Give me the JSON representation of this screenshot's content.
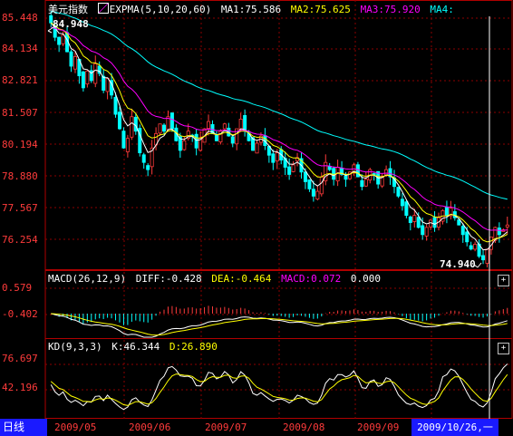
{
  "main_panel": {
    "title": "美元指数",
    "indicator_name": "EXPMA(5,10,20,60)",
    "ma1": "MA1:75.586",
    "ma2": "MA2:75.625",
    "ma3": "MA3:75.920",
    "ma4": "MA4:",
    "high_annotation": "84.948",
    "low_annotation": "74.940",
    "y_ticks": [
      "85.448",
      "84.134",
      "82.821",
      "81.507",
      "80.194",
      "78.880",
      "77.567",
      "76.254"
    ],
    "colors": {
      "ma1": "#ffffff",
      "ma2": "#ffff00",
      "ma3": "#ff00ff",
      "ma4": "#00ffff",
      "up": "#ff3b3b",
      "down": "#00ffff"
    }
  },
  "macd_panel": {
    "label": "MACD(26,12,9)",
    "diff": "DIFF:-0.428",
    "dea": "DEA:-0.464",
    "macd": "MACD:0.072",
    "extra": "0.000",
    "y_ticks": [
      "0.579",
      "-0.402"
    ],
    "plus_button": "+"
  },
  "kd_panel": {
    "label": "KD(9,3,3)",
    "k": "K:46.344",
    "d": "D:26.890",
    "y_ticks": [
      "76.697",
      "42.196"
    ],
    "plus_button": "+"
  },
  "bottom_bar": {
    "period": "日线",
    "dates": [
      "2009/05",
      "2009/06",
      "2009/07",
      "2009/08",
      "2009/09"
    ],
    "cursor_date": "2009/10/26,一"
  },
  "chart_data": {
    "type": "candlestick",
    "x_range": [
      "2009/05",
      "2009/10/26"
    ],
    "ylim": [
      74.6,
      85.6
    ],
    "close": [
      84.8,
      84.2,
      83.9,
      84.3,
      83.6,
      83.0,
      83.4,
      82.6,
      82.1,
      82.8,
      82.4,
      83.1,
      82.7,
      82.0,
      82.5,
      81.8,
      81.0,
      80.4,
      79.6,
      80.0,
      80.9,
      80.3,
      79.4,
      79.0,
      78.7,
      79.6,
      80.2,
      80.6,
      80.3,
      80.9,
      80.4,
      79.9,
      79.5,
      79.9,
      80.3,
      80.1,
      79.6,
      80.0,
      80.4,
      80.7,
      80.2,
      79.9,
      80.3,
      80.6,
      80.1,
      79.8,
      80.4,
      80.8,
      80.3,
      79.9,
      79.5,
      79.8,
      80.1,
      79.7,
      79.3,
      79.0,
      79.4,
      79.1,
      78.8,
      78.5,
      78.9,
      79.2,
      78.6,
      78.2,
      77.9,
      77.6,
      77.8,
      78.4,
      79.0,
      78.7,
      78.3,
      78.8,
      78.5,
      78.3,
      78.6,
      78.9,
      78.4,
      78.0,
      78.3,
      78.7,
      78.5,
      78.1,
      78.4,
      78.7,
      78.4,
      78.0,
      77.6,
      77.2,
      76.8,
      76.5,
      76.8,
      76.3,
      76.0,
      76.3,
      76.6,
      76.3,
      76.7,
      77.0,
      76.8,
      77.1,
      76.7,
      76.4,
      76.0,
      75.7,
      75.4,
      75.6,
      75.1,
      74.95,
      75.4,
      75.9,
      76.3,
      76.0,
      76.2,
      76.4
    ],
    "macd_values": {
      "diff": -0.428,
      "dea": -0.464,
      "macd": 0.072
    },
    "kd_values": {
      "k": 46.344,
      "d": 26.89
    },
    "grid": true
  }
}
